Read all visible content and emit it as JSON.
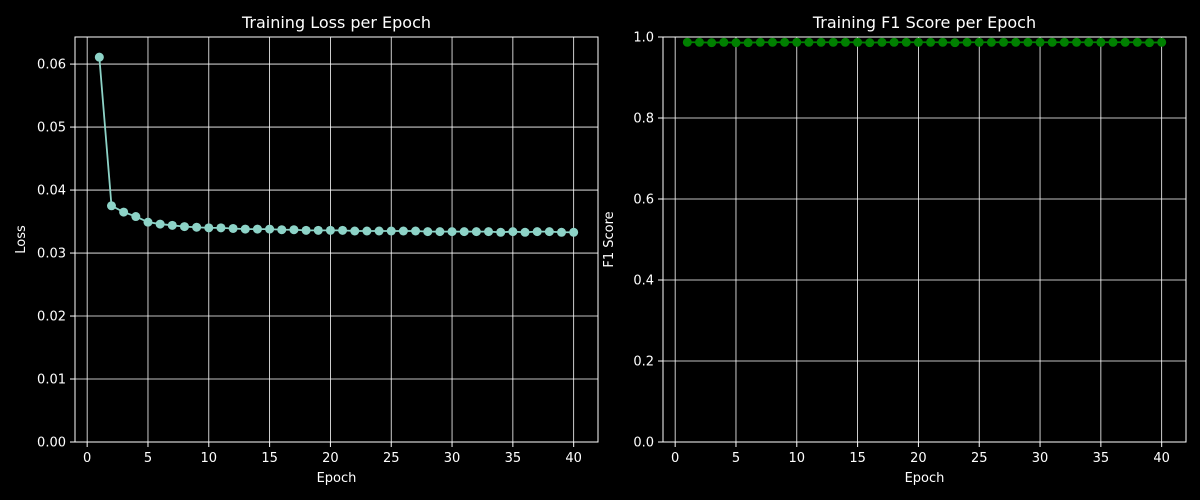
{
  "figure": {
    "background": "#000000"
  },
  "chart_data": [
    {
      "type": "line",
      "title": "Training Loss per Epoch",
      "xlabel": "Epoch",
      "ylabel": "Loss",
      "xlim": [
        -1,
        42
      ],
      "ylim": [
        0,
        0.0643
      ],
      "xticks": [
        0,
        5,
        10,
        15,
        20,
        25,
        30,
        35,
        40
      ],
      "yticks": [
        0.0,
        0.01,
        0.02,
        0.03,
        0.04,
        0.05,
        0.06
      ],
      "ytick_labels": [
        "0.00",
        "0.01",
        "0.02",
        "0.03",
        "0.04",
        "0.05",
        "0.06"
      ],
      "grid": true,
      "color": "#8dd3c7",
      "series": [
        {
          "x": [
            1,
            2,
            3,
            4,
            5,
            6,
            7,
            8,
            9,
            10,
            11,
            12,
            13,
            14,
            15,
            16,
            17,
            18,
            19,
            20,
            21,
            22,
            23,
            24,
            25,
            26,
            27,
            28,
            29,
            30,
            31,
            32,
            33,
            34,
            35,
            36,
            37,
            38,
            39,
            40
          ],
          "values": [
            0.0611,
            0.0375,
            0.0365,
            0.0358,
            0.0349,
            0.0346,
            0.0344,
            0.0342,
            0.0341,
            0.034,
            0.034,
            0.0339,
            0.0338,
            0.0338,
            0.0338,
            0.0337,
            0.0337,
            0.0336,
            0.0336,
            0.0336,
            0.0336,
            0.0335,
            0.0335,
            0.0335,
            0.0335,
            0.0335,
            0.0335,
            0.0334,
            0.0334,
            0.0334,
            0.0334,
            0.0334,
            0.0334,
            0.0333,
            0.0334,
            0.0333,
            0.0334,
            0.0334,
            0.0333,
            0.0333
          ]
        }
      ]
    },
    {
      "type": "line",
      "title": "Training F1 Score per Epoch",
      "xlabel": "Epoch",
      "ylabel": "F1 Score",
      "xlim": [
        -1,
        42
      ],
      "ylim": [
        0,
        1.0
      ],
      "xticks": [
        0,
        5,
        10,
        15,
        20,
        25,
        30,
        35,
        40
      ],
      "yticks": [
        0.0,
        0.2,
        0.4,
        0.6,
        0.8,
        1.0
      ],
      "ytick_labels": [
        "0.0",
        "0.2",
        "0.4",
        "0.6",
        "0.8",
        "1.0"
      ],
      "grid": true,
      "color": "#008000",
      "series": [
        {
          "x": [
            1,
            2,
            3,
            4,
            5,
            6,
            7,
            8,
            9,
            10,
            11,
            12,
            13,
            14,
            15,
            16,
            17,
            18,
            19,
            20,
            21,
            22,
            23,
            24,
            25,
            26,
            27,
            28,
            29,
            30,
            31,
            32,
            33,
            34,
            35,
            36,
            37,
            38,
            39,
            40
          ],
          "values": [
            0.987,
            0.987,
            0.986,
            0.987,
            0.986,
            0.986,
            0.987,
            0.987,
            0.987,
            0.987,
            0.987,
            0.987,
            0.987,
            0.987,
            0.987,
            0.986,
            0.987,
            0.987,
            0.987,
            0.987,
            0.987,
            0.987,
            0.986,
            0.987,
            0.987,
            0.987,
            0.987,
            0.987,
            0.987,
            0.987,
            0.987,
            0.987,
            0.987,
            0.987,
            0.987,
            0.987,
            0.987,
            0.987,
            0.986,
            0.987
          ]
        }
      ]
    }
  ]
}
